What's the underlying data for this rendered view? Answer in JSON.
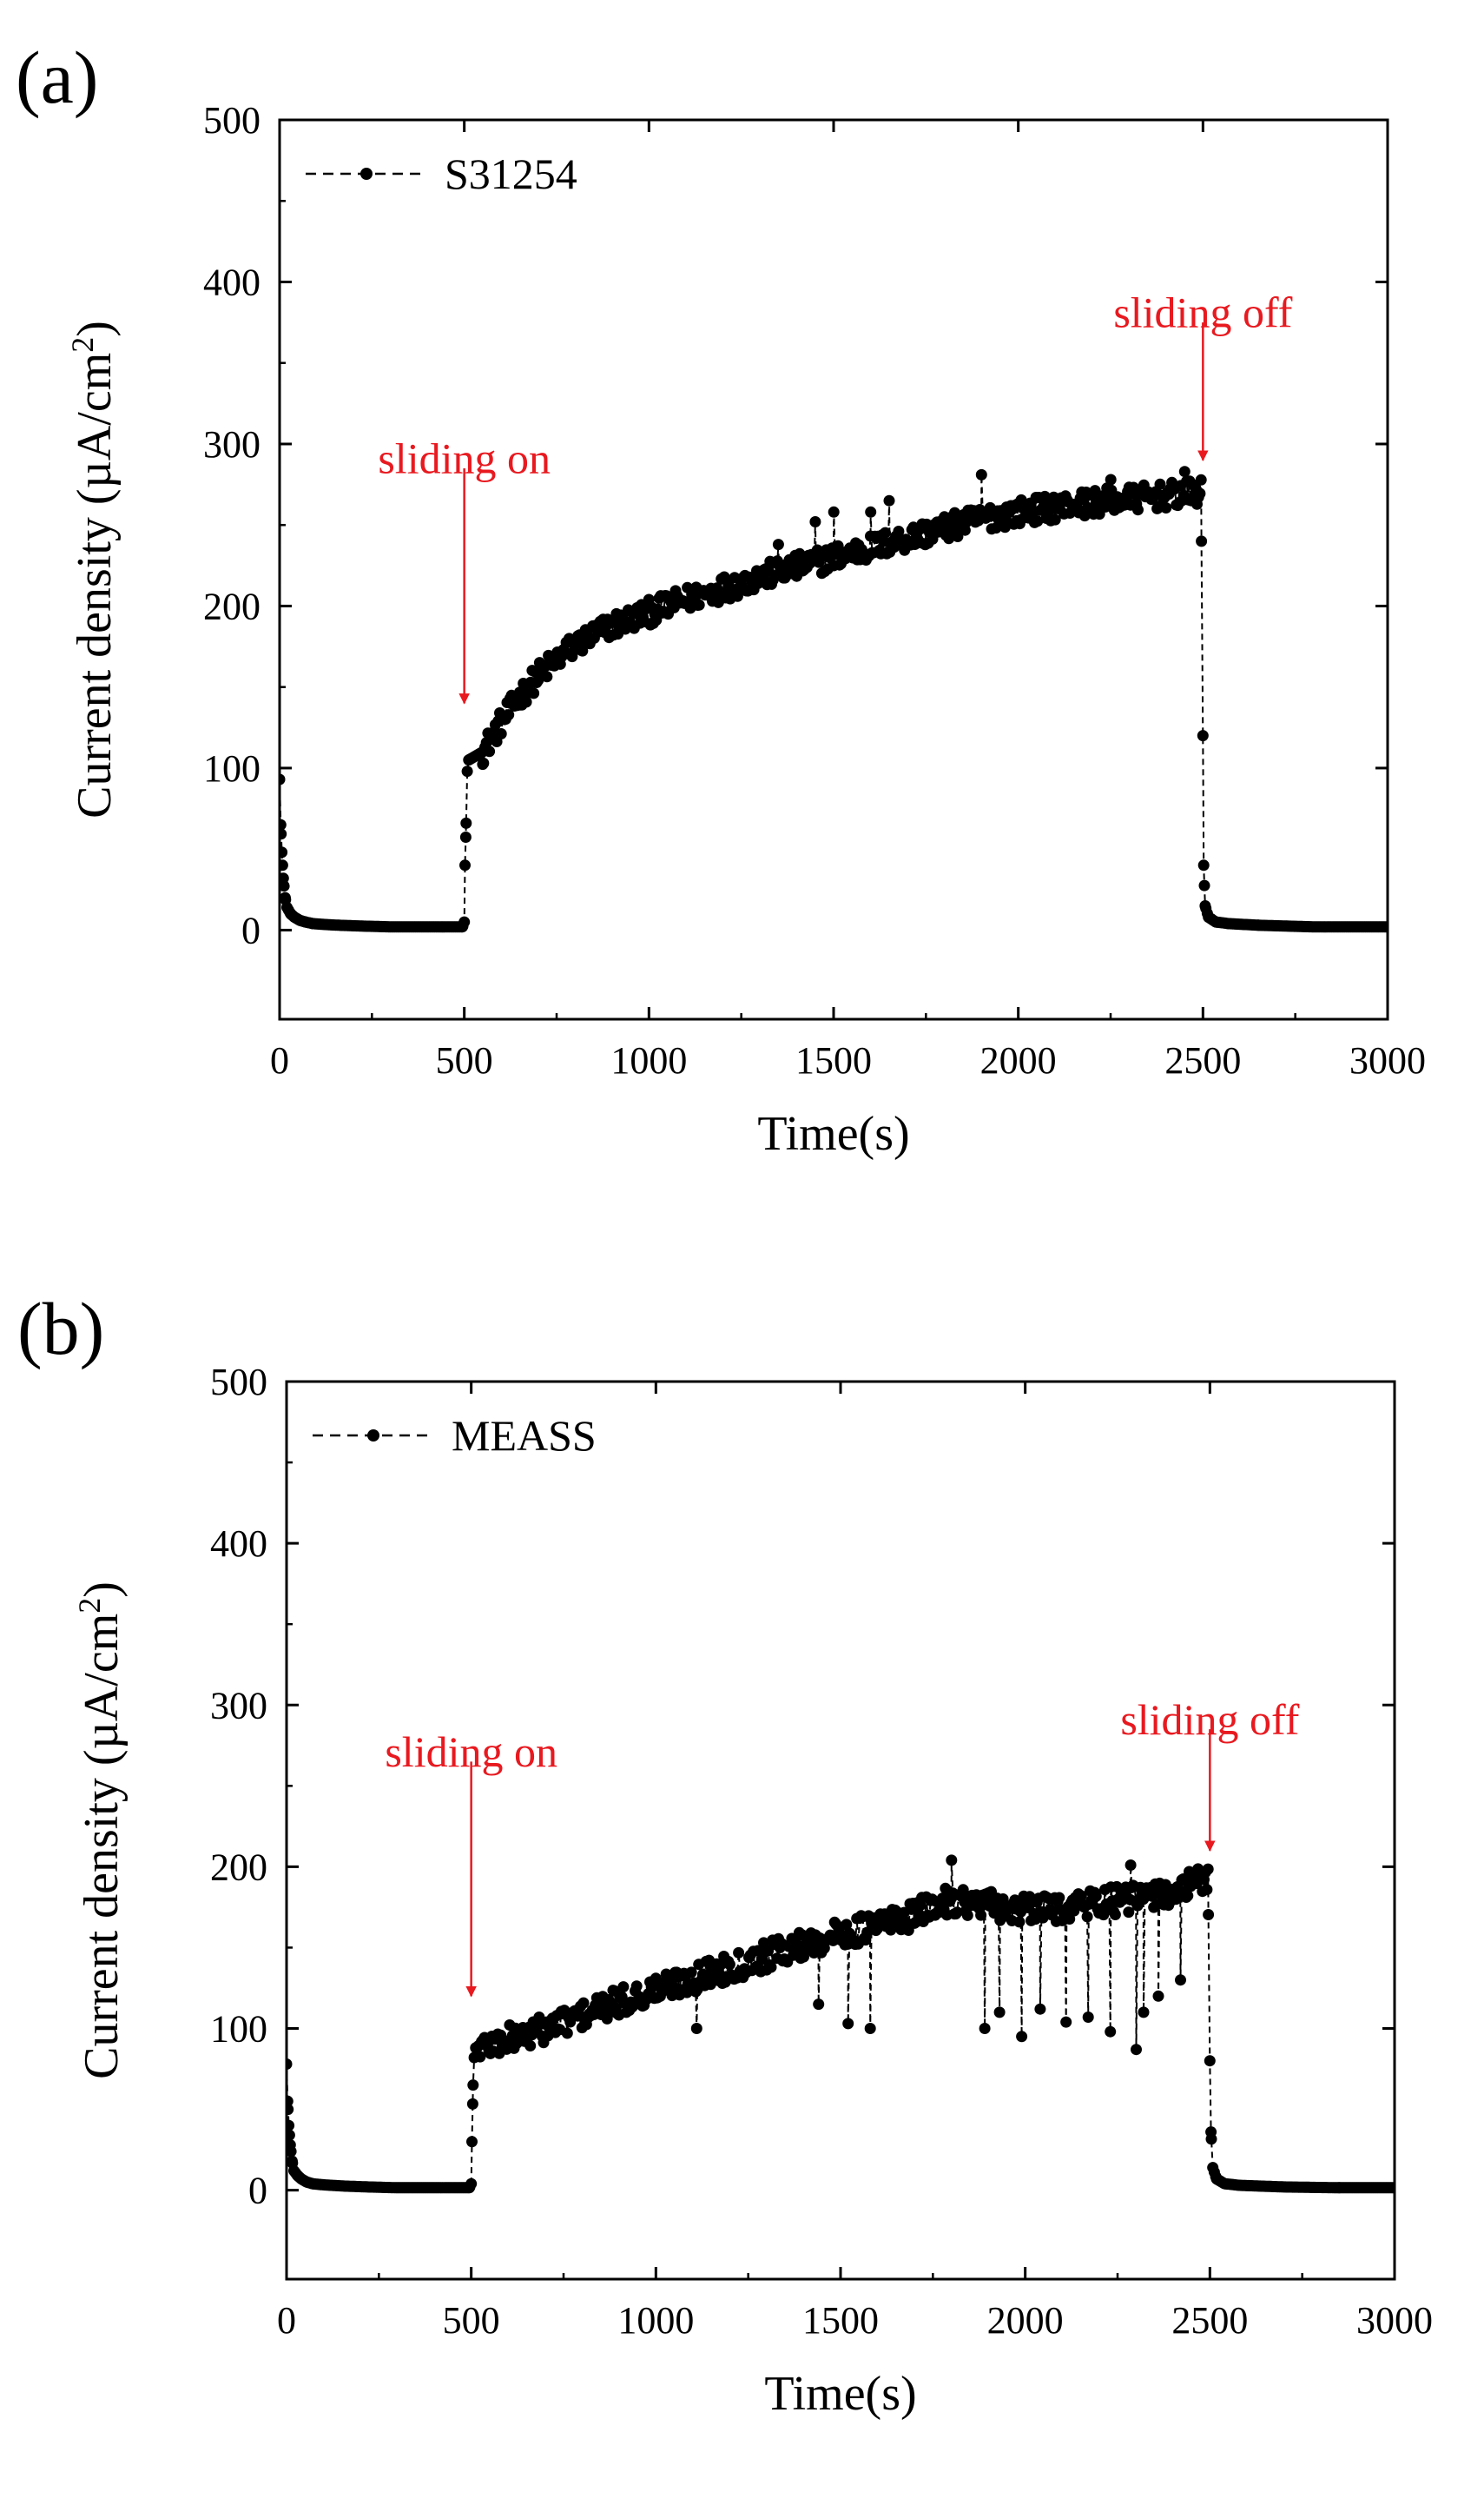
{
  "chart_data": [
    {
      "panel_label": "(a)",
      "type": "line",
      "title": "",
      "xlabel": "Time(s)",
      "ylabel_prefix": "Current density (µA/cm",
      "ylabel_sup": "2",
      "ylabel_suffix": ")",
      "xlim": [
        0,
        3000
      ],
      "ylim": [
        -55,
        500
      ],
      "xticks": [
        0,
        500,
        1000,
        1500,
        2000,
        2500,
        3000
      ],
      "yticks": [
        0,
        100,
        200,
        300,
        400,
        500
      ],
      "grid": false,
      "legend_position": "top-left",
      "series": [
        {
          "name": "S31254",
          "color": "#000000",
          "line_style": "dashed",
          "marker": "circle",
          "baseline": 2,
          "points": [
            [
              0,
              93
            ],
            [
              3,
              65
            ],
            [
              6,
              48
            ],
            [
              10,
              32
            ],
            [
              15,
              20
            ],
            [
              20,
              14
            ],
            [
              30,
              10
            ],
            [
              40,
              8
            ],
            [
              55,
              6
            ],
            [
              70,
              5
            ],
            [
              90,
              4
            ],
            [
              120,
              3.5
            ],
            [
              160,
              3
            ],
            [
              220,
              2.5
            ],
            [
              300,
              2
            ],
            [
              400,
              2
            ],
            [
              495,
              2
            ],
            [
              500,
              5
            ],
            [
              502,
              40
            ],
            [
              505,
              66
            ],
            [
              508,
              98
            ],
            [
              512,
              105
            ],
            [
              550,
              110
            ],
            [
              600,
              128
            ],
            [
              650,
              144
            ],
            [
              700,
              157
            ],
            [
              750,
              167
            ],
            [
              800,
              176
            ],
            [
              850,
              182
            ],
            [
              900,
              188
            ],
            [
              1000,
              196
            ],
            [
              1100,
              204
            ],
            [
              1200,
              211
            ],
            [
              1300,
              218
            ],
            [
              1400,
              224
            ],
            [
              1500,
              230
            ],
            [
              1600,
              236
            ],
            [
              1700,
              242
            ],
            [
              1800,
              248
            ],
            [
              1900,
              254
            ],
            [
              2000,
              258
            ],
            [
              2100,
              261
            ],
            [
              2200,
              264
            ],
            [
              2300,
              266
            ],
            [
              2400,
              268
            ],
            [
              2495,
              270
            ],
            [
              2500,
              120
            ],
            [
              2502,
              40
            ],
            [
              2506,
              15
            ],
            [
              2515,
              8
            ],
            [
              2535,
              5
            ],
            [
              2570,
              4
            ],
            [
              2650,
              3
            ],
            [
              2800,
              2
            ],
            [
              3000,
              2
            ]
          ],
          "noise_window": [
            550,
            2495
          ],
          "noise_amplitude": 8,
          "spikes": [
            {
              "t": 1350,
              "y": 238
            },
            {
              "t": 1450,
              "y": 252
            },
            {
              "t": 1500,
              "y": 258
            },
            {
              "t": 1600,
              "y": 258
            },
            {
              "t": 1650,
              "y": 265
            },
            {
              "t": 1900,
              "y": 281
            },
            {
              "t": 2250,
              "y": 278
            },
            {
              "t": 2450,
              "y": 283
            }
          ]
        }
      ],
      "annotations": [
        {
          "text": "sliding on",
          "x": 500,
          "arrow_from_y": 285,
          "arrow_to_y": 140,
          "label_y": 282
        },
        {
          "text": "sliding off",
          "x": 2500,
          "arrow_from_y": 375,
          "arrow_to_y": 290,
          "label_y": 372
        }
      ]
    },
    {
      "panel_label": "(b)",
      "type": "line",
      "title": "",
      "xlabel": "Time(s)",
      "ylabel_prefix": "Current density (µA/cm",
      "ylabel_sup": "2",
      "ylabel_suffix": ")",
      "xlim": [
        0,
        3000
      ],
      "ylim": [
        -55,
        500
      ],
      "xticks": [
        0,
        500,
        1000,
        1500,
        2000,
        2500,
        3000
      ],
      "yticks": [
        0,
        100,
        200,
        300,
        400,
        500
      ],
      "grid": false,
      "legend_position": "top-left",
      "series": [
        {
          "name": "MEASS",
          "color": "#000000",
          "line_style": "dashed",
          "marker": "circle",
          "baseline": 1.5,
          "points": [
            [
              0,
              78
            ],
            [
              3,
              55
            ],
            [
              6,
              40
            ],
            [
              10,
              28
            ],
            [
              15,
              18
            ],
            [
              20,
              12
            ],
            [
              30,
              9
            ],
            [
              40,
              7
            ],
            [
              55,
              5
            ],
            [
              70,
              4
            ],
            [
              90,
              3.5
            ],
            [
              120,
              3
            ],
            [
              160,
              2.5
            ],
            [
              220,
              2
            ],
            [
              300,
              1.5
            ],
            [
              400,
              1.5
            ],
            [
              495,
              1.5
            ],
            [
              500,
              4
            ],
            [
              502,
              30
            ],
            [
              505,
              65
            ],
            [
              508,
              82
            ],
            [
              512,
              88
            ],
            [
              600,
              93
            ],
            [
              700,
              100
            ],
            [
              800,
              108
            ],
            [
              900,
              116
            ],
            [
              1000,
              124
            ],
            [
              1100,
              131
            ],
            [
              1200,
              138
            ],
            [
              1300,
              145
            ],
            [
              1400,
              152
            ],
            [
              1500,
              158
            ],
            [
              1600,
              164
            ],
            [
              1700,
              170
            ],
            [
              1800,
              180
            ],
            [
              1900,
              176
            ],
            [
              2000,
              173
            ],
            [
              2100,
              175
            ],
            [
              2200,
              178
            ],
            [
              2300,
              180
            ],
            [
              2400,
              184
            ],
            [
              2495,
              193
            ],
            [
              2500,
              80
            ],
            [
              2503,
              36
            ],
            [
              2508,
              14
            ],
            [
              2518,
              7
            ],
            [
              2540,
              4
            ],
            [
              2580,
              3
            ],
            [
              2700,
              2
            ],
            [
              2850,
              1.5
            ],
            [
              3000,
              1.5
            ]
          ],
          "noise_window": [
            520,
            2495
          ],
          "noise_amplitude": 9,
          "spikes": [
            {
              "t": 1110,
              "y": 100
            },
            {
              "t": 1440,
              "y": 115
            },
            {
              "t": 1520,
              "y": 103
            },
            {
              "t": 1580,
              "y": 100
            },
            {
              "t": 1800,
              "y": 204
            },
            {
              "t": 1890,
              "y": 100
            },
            {
              "t": 1930,
              "y": 110
            },
            {
              "t": 1990,
              "y": 95
            },
            {
              "t": 2040,
              "y": 112
            },
            {
              "t": 2110,
              "y": 104
            },
            {
              "t": 2170,
              "y": 107
            },
            {
              "t": 2230,
              "y": 98
            },
            {
              "t": 2285,
              "y": 201
            },
            {
              "t": 2300,
              "y": 87
            },
            {
              "t": 2320,
              "y": 110
            },
            {
              "t": 2360,
              "y": 120
            },
            {
              "t": 2420,
              "y": 130
            },
            {
              "t": 2440,
              "y": 190
            },
            {
              "t": 2470,
              "y": 197
            }
          ]
        }
      ],
      "annotations": [
        {
          "text": "sliding on",
          "x": 500,
          "arrow_from_y": 265,
          "arrow_to_y": 120,
          "label_y": 262
        },
        {
          "text": "sliding off",
          "x": 2500,
          "arrow_from_y": 285,
          "arrow_to_y": 210,
          "label_y": 282
        }
      ]
    }
  ],
  "colors": {
    "annotation": "#e8191f",
    "axis": "#000000",
    "data": "#000000"
  }
}
